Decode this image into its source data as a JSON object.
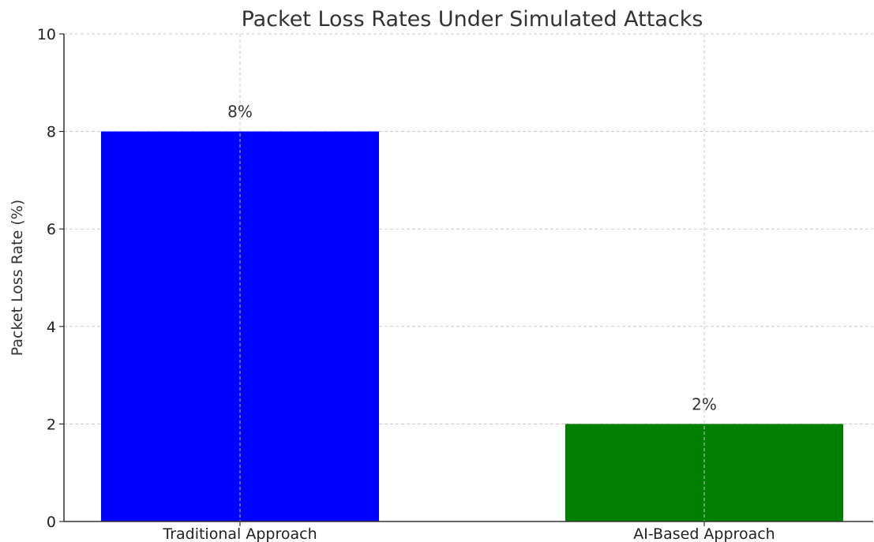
{
  "chart_data": {
    "type": "bar",
    "title": "Packet Loss Rates Under Simulated Attacks",
    "xlabel": "",
    "ylabel": "Packet Loss Rate (%)",
    "categories": [
      "Traditional Approach",
      "AI-Based Approach"
    ],
    "values": [
      8,
      2
    ],
    "bar_labels": [
      "8%",
      "2%"
    ],
    "colors": [
      "#0000ff",
      "#008000"
    ],
    "ylim": [
      0,
      10
    ],
    "yticks": [
      0,
      2,
      4,
      6,
      8,
      10
    ],
    "grid": true,
    "legend": "none"
  }
}
